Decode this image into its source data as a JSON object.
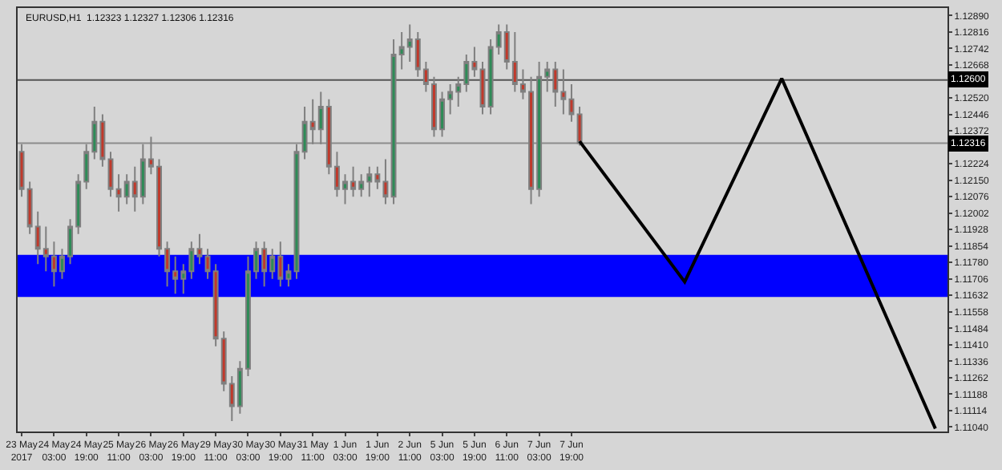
{
  "chart_data": {
    "type": "candlestick",
    "title": "EURUSD,H1  1.12323 1.12327 1.12306 1.12316",
    "categories": [
      "23 May 2017",
      null,
      null,
      null,
      "24 May 03:00",
      null,
      null,
      null,
      "24 May 19:00",
      null,
      null,
      null,
      "25 May 11:00",
      null,
      null,
      null,
      "26 May 03:00",
      null,
      null,
      null,
      "26 May 19:00",
      null,
      null,
      null,
      "29 May 11:00",
      null,
      null,
      null,
      "30 May 03:00",
      null,
      null,
      null,
      "30 May 19:00",
      null,
      null,
      null,
      "31 May 11:00",
      null,
      null,
      null,
      "1 Jun 03:00",
      null,
      null,
      null,
      "1 Jun 19:00",
      null,
      null,
      null,
      "2 Jun 11:00",
      null,
      null,
      null,
      "5 Jun 03:00",
      null,
      null,
      null,
      "5 Jun 19:00",
      null,
      null,
      null,
      "6 Jun 11:00",
      null,
      null,
      null,
      "7 Jun 03:00",
      null,
      null,
      null,
      "7 Jun 19:00",
      null,
      null,
      null,
      null,
      null,
      null,
      null,
      null,
      null,
      null,
      null,
      null,
      null,
      null,
      null,
      null,
      null,
      null,
      null,
      null,
      null,
      null,
      null,
      null,
      null,
      null,
      null,
      null,
      null,
      null,
      null,
      null,
      null,
      null,
      null,
      null,
      null,
      null,
      null,
      null,
      null,
      null,
      null,
      null,
      null,
      null
    ],
    "series": [
      {
        "color": "#7f7f7f",
        "ohlc": [
          [
            1.12278,
            1.12312,
            1.12076,
            1.1211
          ],
          [
            1.1211,
            1.12143,
            1.11908,
            1.11941
          ],
          [
            1.11941,
            1.12009,
            1.11773,
            1.11841
          ],
          [
            1.11841,
            1.11941,
            1.1174,
            1.11807
          ],
          [
            1.11807,
            1.11874,
            1.11672,
            1.1174
          ],
          [
            1.1174,
            1.11841,
            1.11706,
            1.11807
          ],
          [
            1.11807,
            1.11975,
            1.11773,
            1.11941
          ],
          [
            1.11941,
            1.12177,
            1.11908,
            1.12143
          ],
          [
            1.12143,
            1.12312,
            1.1211,
            1.12278
          ],
          [
            1.12278,
            1.1248,
            1.12244,
            1.12413
          ],
          [
            1.12413,
            1.12446,
            1.12211,
            1.12244
          ],
          [
            1.12244,
            1.12278,
            1.12076,
            1.1211
          ],
          [
            1.1211,
            1.12177,
            1.12009,
            1.12076
          ],
          [
            1.12076,
            1.12177,
            1.12042,
            1.12143
          ],
          [
            1.12143,
            1.12211,
            1.12009,
            1.12076
          ],
          [
            1.12076,
            1.12312,
            1.12042,
            1.12244
          ],
          [
            1.12244,
            1.12345,
            1.12177,
            1.12211
          ],
          [
            1.12211,
            1.12244,
            1.11807,
            1.11841
          ],
          [
            1.11841,
            1.11874,
            1.11672,
            1.1174
          ],
          [
            1.1174,
            1.11807,
            1.11639,
            1.11706
          ],
          [
            1.11706,
            1.11773,
            1.11639,
            1.1174
          ],
          [
            1.1174,
            1.11874,
            1.11706,
            1.11841
          ],
          [
            1.11841,
            1.11908,
            1.11773,
            1.11807
          ],
          [
            1.11807,
            1.11841,
            1.11706,
            1.1174
          ],
          [
            1.1174,
            1.11773,
            1.11403,
            1.11437
          ],
          [
            1.11437,
            1.1147,
            1.11201,
            1.11235
          ],
          [
            1.11235,
            1.11269,
            1.11067,
            1.11134
          ],
          [
            1.11134,
            1.11336,
            1.111,
            1.11302
          ],
          [
            1.11302,
            1.11807,
            1.11269,
            1.1174
          ],
          [
            1.1174,
            1.11874,
            1.11706,
            1.11841
          ],
          [
            1.11841,
            1.11874,
            1.11672,
            1.1174
          ],
          [
            1.1174,
            1.11841,
            1.11706,
            1.11807
          ],
          [
            1.11807,
            1.11874,
            1.11672,
            1.11706
          ],
          [
            1.11706,
            1.11773,
            1.11672,
            1.1174
          ],
          [
            1.1174,
            1.12312,
            1.11706,
            1.12278
          ],
          [
            1.12278,
            1.1248,
            1.12244,
            1.12413
          ],
          [
            1.12413,
            1.12514,
            1.12312,
            1.12379
          ],
          [
            1.12379,
            1.12547,
            1.12312,
            1.1248
          ],
          [
            1.1248,
            1.12514,
            1.12177,
            1.12211
          ],
          [
            1.12211,
            1.12278,
            1.12076,
            1.1211
          ],
          [
            1.1211,
            1.12177,
            1.12042,
            1.12143
          ],
          [
            1.12143,
            1.12211,
            1.12076,
            1.1211
          ],
          [
            1.1211,
            1.12177,
            1.12076,
            1.12143
          ],
          [
            1.12143,
            1.12211,
            1.12076,
            1.12177
          ],
          [
            1.12177,
            1.12211,
            1.1211,
            1.12143
          ],
          [
            1.12143,
            1.12244,
            1.12042,
            1.12076
          ],
          [
            1.12076,
            1.12783,
            1.12042,
            1.12715
          ],
          [
            1.12715,
            1.12816,
            1.12648,
            1.12749
          ],
          [
            1.12749,
            1.1285,
            1.12682,
            1.12783
          ],
          [
            1.12783,
            1.12816,
            1.12615,
            1.12648
          ],
          [
            1.12648,
            1.12682,
            1.12547,
            1.12581
          ],
          [
            1.12581,
            1.12615,
            1.12345,
            1.12379
          ],
          [
            1.12379,
            1.12547,
            1.12345,
            1.12514
          ],
          [
            1.12514,
            1.12581,
            1.12446,
            1.12547
          ],
          [
            1.12547,
            1.12615,
            1.1248,
            1.12581
          ],
          [
            1.12581,
            1.12715,
            1.12547,
            1.12682
          ],
          [
            1.12682,
            1.12749,
            1.12615,
            1.12648
          ],
          [
            1.12648,
            1.12682,
            1.12446,
            1.1248
          ],
          [
            1.1248,
            1.12783,
            1.12446,
            1.12749
          ],
          [
            1.12749,
            1.1285,
            1.12715,
            1.12816
          ],
          [
            1.12816,
            1.1285,
            1.12648,
            1.12682
          ],
          [
            1.12682,
            1.12816,
            1.12547,
            1.12581
          ],
          [
            1.12581,
            1.12648,
            1.12514,
            1.12547
          ],
          [
            1.12547,
            1.12615,
            1.12042,
            1.1211
          ],
          [
            1.1211,
            1.12682,
            1.12076,
            1.12615
          ],
          [
            1.12615,
            1.12682,
            1.12547,
            1.12648
          ],
          [
            1.12648,
            1.12682,
            1.1248,
            1.12547
          ],
          [
            1.12547,
            1.12648,
            1.12446,
            1.12514
          ],
          [
            1.12514,
            1.12581,
            1.12413,
            1.12446
          ],
          [
            1.12446,
            1.1248,
            1.12306,
            1.12316
          ],
          null,
          null,
          null,
          null,
          null,
          null,
          null,
          null,
          null,
          null,
          null,
          null,
          null,
          null,
          null,
          null,
          null,
          null,
          null,
          null,
          null,
          null,
          null,
          null,
          null,
          null,
          null,
          null,
          null,
          null,
          null,
          null,
          null,
          null,
          null,
          null,
          null,
          null,
          null,
          null,
          null,
          null,
          null,
          null,
          null
        ]
      },
      {
        "type": "line",
        "color": "#000000",
        "values": [
          null,
          null,
          null,
          null,
          null,
          null,
          null,
          null,
          null,
          null,
          null,
          null,
          null,
          null,
          null,
          null,
          null,
          null,
          null,
          null,
          null,
          null,
          null,
          null,
          null,
          null,
          null,
          null,
          null,
          null,
          null,
          null,
          null,
          null,
          null,
          null,
          null,
          null,
          null,
          null,
          null,
          null,
          null,
          null,
          null,
          null,
          null,
          null,
          null,
          null,
          null,
          null,
          null,
          null,
          null,
          null,
          null,
          null,
          null,
          null,
          null,
          null,
          null,
          null,
          null,
          null,
          null,
          null,
          null,
          1.12325,
          null,
          null,
          null,
          null,
          null,
          null,
          null,
          null,
          null,
          null,
          null,
          null,
          1.11693,
          null,
          null,
          null,
          null,
          null,
          null,
          null,
          null,
          null,
          null,
          null,
          1.12607,
          null,
          null,
          null,
          null,
          null,
          null,
          null,
          null,
          null,
          null,
          null,
          null,
          null,
          null,
          null,
          null,
          null,
          null,
          1.11033,
          null
        ]
      }
    ],
    "ylim": [
      1.1102,
      1.12924
    ],
    "yticks": [
      {
        "value": 1.1104,
        "label": "1.11040"
      },
      {
        "value": 1.11114,
        "label": "1.11114"
      },
      {
        "value": 1.11188,
        "label": "1.11188"
      },
      {
        "value": 1.11262,
        "label": "1.11262"
      },
      {
        "value": 1.11336,
        "label": "1.11336"
      },
      {
        "value": 1.1141,
        "label": "1.11410"
      },
      {
        "value": 1.11484,
        "label": "1.11484"
      },
      {
        "value": 1.11558,
        "label": "1.11558"
      },
      {
        "value": 1.11632,
        "label": "1.11632"
      },
      {
        "value": 1.11706,
        "label": "1.11706"
      },
      {
        "value": 1.1178,
        "label": "1.11780"
      },
      {
        "value": 1.11854,
        "label": "1.11854"
      },
      {
        "value": 1.11928,
        "label": "1.11928"
      },
      {
        "value": 1.12002,
        "label": "1.12002"
      },
      {
        "value": 1.12076,
        "label": "1.12076"
      },
      {
        "value": 1.1215,
        "label": "1.12150"
      },
      {
        "value": 1.12224,
        "label": "1.12224"
      },
      {
        "value": 1.12372,
        "label": "1.12372"
      },
      {
        "value": 1.12446,
        "label": "1.12446"
      },
      {
        "value": 1.1252,
        "label": "1.12520"
      },
      {
        "value": 1.12668,
        "label": "1.12668"
      },
      {
        "value": 1.12742,
        "label": "1.12742"
      },
      {
        "value": 1.12816,
        "label": "1.12816"
      },
      {
        "value": 1.1289,
        "label": "1.12890"
      }
    ],
    "ref_lines": [
      {
        "axis": "y",
        "value": 1.126,
        "label": "1.12600",
        "color": "#555555"
      },
      {
        "axis": "y",
        "value": 1.12316,
        "label": "1.12316",
        "color": "#8c8c8c"
      }
    ],
    "bands": [
      {
        "axis": "y",
        "from": 1.11625,
        "to": 1.11814,
        "color": "#0000ff"
      }
    ],
    "grid": false
  }
}
